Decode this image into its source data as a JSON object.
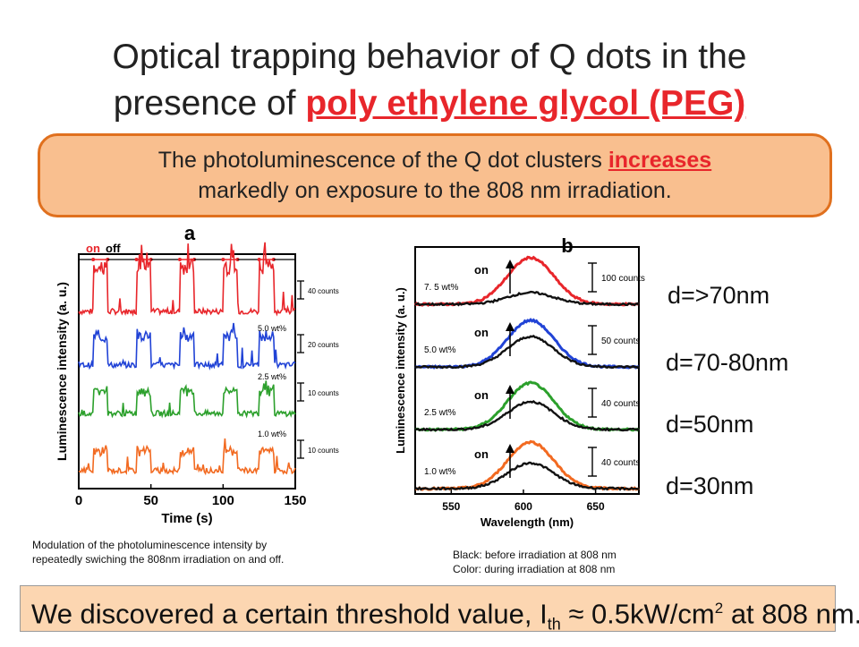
{
  "title": {
    "line1": "Optical trapping behavior of Q dots in the",
    "line2_prefix": "presence of ",
    "line2_highlight": "poly ethylene glycol (PEG)"
  },
  "callout": {
    "prefix": "The photoluminescence of the Q dot clusters ",
    "highlight": "increases",
    "suffix": "markedly on exposure to the 808 nm irradiation."
  },
  "chart_data": [
    {
      "type": "line",
      "panel_label": "a",
      "legend": {
        "on": "on",
        "off": "off"
      },
      "xlabel": "Time (s)",
      "ylabel": "Luminescence intensity (a. u.)",
      "xlim": [
        0,
        150
      ],
      "x_ticks": [
        "0",
        "50",
        "100",
        "150"
      ],
      "series": [
        {
          "color": "#e8262b",
          "scale_bar": "40 counts",
          "on_intervals": [
            [
              10,
              20
            ],
            [
              40,
              50
            ],
            [
              70,
              80
            ],
            [
              100,
              110
            ],
            [
              125,
              135
            ]
          ],
          "peak": 3.0,
          "peak_text": ""
        },
        {
          "color": "#2143d6",
          "scale_bar": "20 counts",
          "on_intervals": [
            [
              10,
              20
            ],
            [
              40,
              50
            ],
            [
              70,
              80
            ],
            [
              100,
              110
            ],
            [
              125,
              135
            ]
          ],
          "peak": 1.9,
          "peak_text": "5.0 wt%"
        },
        {
          "color": "#2ca02c",
          "scale_bar": "10 counts",
          "on_intervals": [
            [
              10,
              20
            ],
            [
              40,
              50
            ],
            [
              70,
              80
            ],
            [
              100,
              110
            ],
            [
              125,
              135
            ]
          ],
          "peak": 1.5,
          "peak_text": "2.5 wt%"
        },
        {
          "color": "#f26a21",
          "scale_bar": "10 counts",
          "on_intervals": [
            [
              10,
              20
            ],
            [
              40,
              50
            ],
            [
              70,
              80
            ],
            [
              100,
              110
            ],
            [
              125,
              135
            ]
          ],
          "peak": 1.3,
          "peak_text": "1.0 wt%"
        }
      ]
    },
    {
      "type": "line",
      "panel_label": "b",
      "xlabel": "Wavelength (nm)",
      "ylabel": "Luminescence intensity (a. u.)",
      "xlim": [
        525,
        680
      ],
      "x_ticks": [
        "550",
        "600",
        "650"
      ],
      "series": [
        {
          "conc": "7. 5 wt%",
          "on": "on",
          "scale_bar": "100 counts",
          "color": "#e8262b",
          "center": 605,
          "after_amp": 1.0,
          "before_amp": 0.25
        },
        {
          "conc": "5.0 wt%",
          "on": "on",
          "scale_bar": "50 counts",
          "color": "#2143d6",
          "center": 605,
          "after_amp": 1.0,
          "before_amp": 0.65
        },
        {
          "conc": "2.5 wt%",
          "on": "on",
          "scale_bar": "40 counts",
          "color": "#2ca02c",
          "center": 605,
          "after_amp": 1.0,
          "before_amp": 0.6
        },
        {
          "conc": "1.0 wt%",
          "on": "on",
          "scale_bar": "40 counts",
          "color": "#f26a21",
          "center": 605,
          "after_amp": 1.0,
          "before_amp": 0.55
        }
      ]
    }
  ],
  "size_labels": [
    "d=>70nm",
    "d=70-80nm",
    "d=50nm",
    "d=30nm"
  ],
  "caption_a": {
    "line1": "Modulation of the photoluminescence intensity by",
    "line2": "repeatedly swiching the 808nm irradiation on and off."
  },
  "caption_b": {
    "line1": "Black: before irradiation at 808 nm",
    "line2": "Color: during irradiation at 808 nm"
  },
  "footer": {
    "prefix": "We discovered a certain threshold value, I",
    "sub": "th",
    "middle": " ≈ 0.5kW/cm",
    "sup": "2",
    "suffix": " at 808 nm."
  }
}
